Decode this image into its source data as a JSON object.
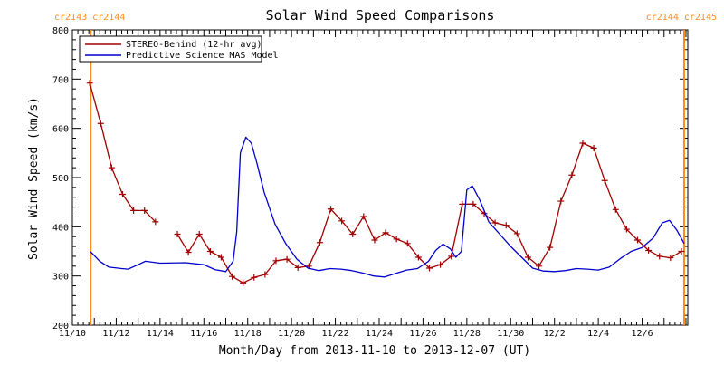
{
  "colors": {
    "stereo": "#A00000",
    "model": "#0000CC",
    "carrington": "#FF8C1A",
    "axis": "#000000",
    "background": "#FFFFFF"
  },
  "chart_data": {
    "type": "line",
    "title": "Solar Wind Speed Comparisons",
    "xlabel": "Month/Day from 2013-11-10 to 2013-12-07 (UT)",
    "ylabel": "Solar Wind Speed (km/s)",
    "xlim": [
      "2013-11-10T00:00",
      "2013-12-08T02:00"
    ],
    "ylim": [
      200,
      800
    ],
    "grid": false,
    "legend_position": "top-left",
    "x_ticks": [
      {
        "date": "2013-11-10",
        "label": "11/10"
      },
      {
        "date": "2013-11-12",
        "label": "11/12"
      },
      {
        "date": "2013-11-14",
        "label": "11/14"
      },
      {
        "date": "2013-11-16",
        "label": "11/16"
      },
      {
        "date": "2013-11-18",
        "label": "11/18"
      },
      {
        "date": "2013-11-20",
        "label": "11/20"
      },
      {
        "date": "2013-11-22",
        "label": "11/22"
      },
      {
        "date": "2013-11-24",
        "label": "11/24"
      },
      {
        "date": "2013-11-26",
        "label": "11/26"
      },
      {
        "date": "2013-11-28",
        "label": "11/28"
      },
      {
        "date": "2013-11-30",
        "label": "11/30"
      },
      {
        "date": "2013-12-02",
        "label": "12/2"
      },
      {
        "date": "2013-12-04",
        "label": "12/4"
      },
      {
        "date": "2013-12-06",
        "label": "12/6"
      }
    ],
    "y_ticks": [
      200,
      300,
      400,
      500,
      600,
      700,
      800
    ],
    "carrington_markers": [
      {
        "date": "2013-11-10T20:00",
        "label": "cr2143 cr2144",
        "label_side": "left"
      },
      {
        "date": "2013-12-07T22:00",
        "label": "cr2144 cr2145",
        "label_side": "right"
      }
    ],
    "series": [
      {
        "name": "STEREO-Behind (12-hr avg)",
        "color_key": "stereo",
        "markers": true,
        "segments": [
          [
            [
              "2013-11-10T19:00",
              692
            ],
            [
              "2013-11-11T07:00",
              610
            ],
            [
              "2013-11-11T19:00",
              520
            ],
            [
              "2013-11-12T07:00",
              466
            ],
            [
              "2013-11-12T19:00",
              433
            ],
            [
              "2013-11-13T07:00",
              433
            ],
            [
              "2013-11-13T19:00",
              410
            ]
          ],
          [
            [
              "2013-11-14T19:00",
              385
            ],
            [
              "2013-11-15T07:00",
              348
            ],
            [
              "2013-11-15T19:00",
              385
            ],
            [
              "2013-11-16T07:00",
              350
            ],
            [
              "2013-11-16T19:00",
              338
            ],
            [
              "2013-11-17T07:00",
              299
            ],
            [
              "2013-11-17T19:00",
              286
            ],
            [
              "2013-11-18T07:00",
              297
            ],
            [
              "2013-11-18T19:00",
              303
            ],
            [
              "2013-11-19T07:00",
              331
            ],
            [
              "2013-11-19T19:00",
              334
            ],
            [
              "2013-11-20T07:00",
              317
            ],
            [
              "2013-11-20T19:00",
              320
            ],
            [
              "2013-11-21T07:00",
              368
            ],
            [
              "2013-11-21T19:00",
              436
            ],
            [
              "2013-11-22T07:00",
              412
            ],
            [
              "2013-11-22T19:00",
              385
            ],
            [
              "2013-11-23T07:00",
              421
            ],
            [
              "2013-11-23T19:00",
              373
            ],
            [
              "2013-11-24T07:00",
              388
            ],
            [
              "2013-11-24T19:00",
              375
            ],
            [
              "2013-11-25T07:00",
              366
            ],
            [
              "2013-11-25T19:00",
              338
            ],
            [
              "2013-11-26T07:00",
              316
            ],
            [
              "2013-11-26T19:00",
              323
            ],
            [
              "2013-11-27T07:00",
              340
            ],
            [
              "2013-11-27T19:00",
              446
            ],
            [
              "2013-11-28T07:00",
              446
            ],
            [
              "2013-11-28T19:00",
              427
            ],
            [
              "2013-11-29T07:00",
              408
            ],
            [
              "2013-11-29T19:00",
              403
            ],
            [
              "2013-11-30T07:00",
              386
            ],
            [
              "2013-11-30T19:00",
              338
            ],
            [
              "2013-12-01T07:00",
              320
            ],
            [
              "2013-12-01T19:00",
              358
            ],
            [
              "2013-12-02T07:00",
              452
            ],
            [
              "2013-12-02T19:00",
              505
            ],
            [
              "2013-12-03T07:00",
              570
            ],
            [
              "2013-12-03T19:00",
              560
            ],
            [
              "2013-12-04T07:00",
              494
            ],
            [
              "2013-12-04T19:00",
              435
            ],
            [
              "2013-12-05T07:00",
              395
            ],
            [
              "2013-12-05T19:00",
              373
            ],
            [
              "2013-12-06T07:00",
              352
            ],
            [
              "2013-12-06T19:00",
              340
            ],
            [
              "2013-12-07T07:00",
              337
            ],
            [
              "2013-12-07T19:00",
              350
            ]
          ]
        ]
      },
      {
        "name": "Predictive Science MAS Model",
        "color_key": "model",
        "markers": false,
        "segments": [
          [
            [
              "2013-11-10T20:00",
              349
            ],
            [
              "2013-11-11T06:00",
              330
            ],
            [
              "2013-11-11T16:00",
              318
            ],
            [
              "2013-11-12T06:00",
              315
            ],
            [
              "2013-11-12T13:00",
              314
            ],
            [
              "2013-11-13T00:00",
              323
            ],
            [
              "2013-11-13T08:00",
              330
            ],
            [
              "2013-11-14T00:00",
              326
            ],
            [
              "2013-11-15T04:00",
              327
            ],
            [
              "2013-11-16T00:00",
              323
            ],
            [
              "2013-11-16T12:00",
              313
            ],
            [
              "2013-11-17T00:00",
              309
            ],
            [
              "2013-11-17T08:00",
              330
            ],
            [
              "2013-11-17T12:00",
              390
            ],
            [
              "2013-11-17T16:00",
              550
            ],
            [
              "2013-11-17T22:00",
              582
            ],
            [
              "2013-11-18T04:00",
              570
            ],
            [
              "2013-11-18T10:00",
              530
            ],
            [
              "2013-11-18T18:00",
              470
            ],
            [
              "2013-11-19T06:00",
              405
            ],
            [
              "2013-11-19T18:00",
              365
            ],
            [
              "2013-11-20T06:00",
              334
            ],
            [
              "2013-11-20T18:00",
              316
            ],
            [
              "2013-11-21T06:00",
              311
            ],
            [
              "2013-11-21T18:00",
              315
            ],
            [
              "2013-11-22T06:00",
              314
            ],
            [
              "2013-11-22T18:00",
              311
            ],
            [
              "2013-11-23T06:00",
              306
            ],
            [
              "2013-11-23T18:00",
              300
            ],
            [
              "2013-11-24T06:00",
              298
            ],
            [
              "2013-11-24T18:00",
              305
            ],
            [
              "2013-11-25T06:00",
              312
            ],
            [
              "2013-11-25T18:00",
              315
            ],
            [
              "2013-11-26T06:00",
              330
            ],
            [
              "2013-11-26T14:00",
              352
            ],
            [
              "2013-11-26T22:00",
              365
            ],
            [
              "2013-11-27T06:00",
              355
            ],
            [
              "2013-11-27T12:00",
              338
            ],
            [
              "2013-11-27T18:00",
              350
            ],
            [
              "2013-11-28T00:00",
              475
            ],
            [
              "2013-11-28T06:00",
              483
            ],
            [
              "2013-11-28T14:00",
              455
            ],
            [
              "2013-11-29T00:00",
              410
            ],
            [
              "2013-11-29T12:00",
              385
            ],
            [
              "2013-11-30T00:00",
              360
            ],
            [
              "2013-11-30T12:00",
              338
            ],
            [
              "2013-12-01T00:00",
              316
            ],
            [
              "2013-12-01T12:00",
              310
            ],
            [
              "2013-12-02T00:00",
              309
            ],
            [
              "2013-12-02T12:00",
              311
            ],
            [
              "2013-12-03T00:00",
              315
            ],
            [
              "2013-12-03T12:00",
              314
            ],
            [
              "2013-12-04T00:00",
              312
            ],
            [
              "2013-12-04T12:00",
              318
            ],
            [
              "2013-12-05T00:00",
              335
            ],
            [
              "2013-12-05T12:00",
              350
            ],
            [
              "2013-12-06T00:00",
              358
            ],
            [
              "2013-12-06T12:00",
              377
            ],
            [
              "2013-12-06T22:00",
              408
            ],
            [
              "2013-12-07T06:00",
              413
            ],
            [
              "2013-12-07T14:00",
              393
            ],
            [
              "2013-12-07T22:00",
              366
            ]
          ]
        ]
      }
    ]
  }
}
